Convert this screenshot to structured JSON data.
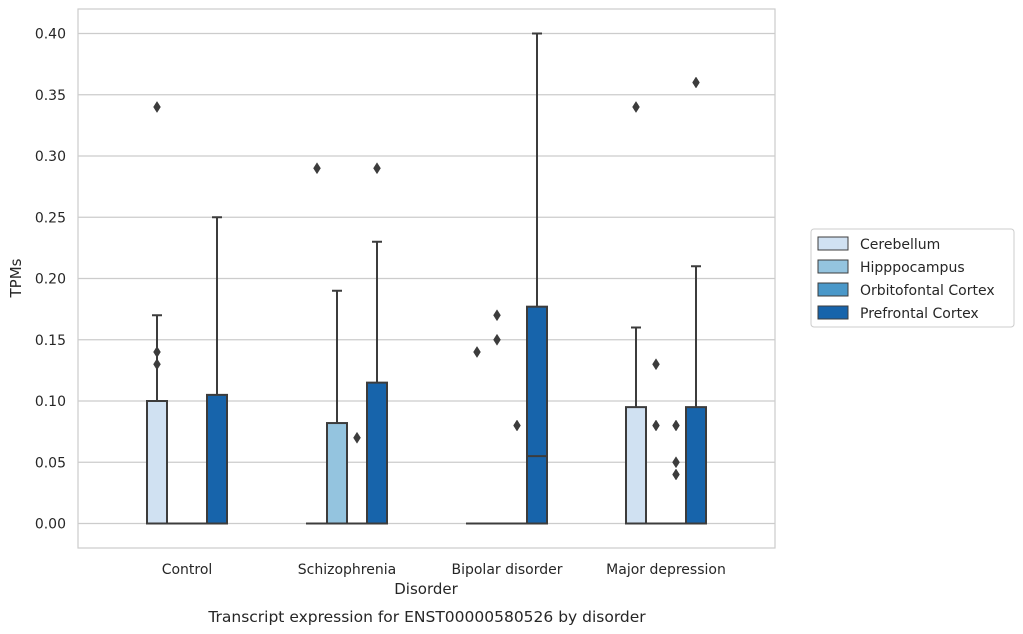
{
  "chart_data": {
    "type": "box",
    "title": "",
    "caption": "Transcript expression for ENST00000580526 by disorder",
    "xlabel": "Disorder",
    "ylabel": "TPMs",
    "ylim": [
      -0.02,
      0.42
    ],
    "yticks": [
      "0.00",
      "0.05",
      "0.10",
      "0.15",
      "0.20",
      "0.25",
      "0.30",
      "0.35",
      "0.40"
    ],
    "grid": "horizontal",
    "legend_placement": "right",
    "categories": [
      "Control",
      "Schizophrenia",
      "Bipolar disorder",
      "Major depression"
    ],
    "series": [
      {
        "name": "Cerebellum",
        "color": "#d0e1f2",
        "boxes": [
          {
            "category": "Control",
            "min": 0.0,
            "q1": 0.0,
            "median": 0.0,
            "q3": 0.1,
            "max": 0.17,
            "outliers": [
              0.13,
              0.14,
              0.34
            ]
          },
          {
            "category": "Schizophrenia",
            "min": 0.0,
            "q1": 0.0,
            "median": 0.0,
            "q3": 0.0,
            "max": 0.0,
            "outliers": [
              0.29
            ]
          },
          {
            "category": "Bipolar disorder",
            "min": 0.0,
            "q1": 0.0,
            "median": 0.0,
            "q3": 0.0,
            "max": 0.0,
            "outliers": [
              0.14
            ]
          },
          {
            "category": "Major depression",
            "min": 0.0,
            "q1": 0.0,
            "median": 0.0,
            "q3": 0.095,
            "max": 0.16,
            "outliers": [
              0.34
            ]
          }
        ]
      },
      {
        "name": "Hipppocampus",
        "color": "#94c4df",
        "boxes": [
          {
            "category": "Control",
            "min": 0.0,
            "q1": 0.0,
            "median": 0.0,
            "q3": 0.0,
            "max": 0.0,
            "outliers": []
          },
          {
            "category": "Schizophrenia",
            "min": 0.0,
            "q1": 0.0,
            "median": 0.0,
            "q3": 0.082,
            "max": 0.19,
            "outliers": []
          },
          {
            "category": "Bipolar disorder",
            "min": 0.0,
            "q1": 0.0,
            "median": 0.0,
            "q3": 0.0,
            "max": 0.0,
            "outliers": [
              0.15,
              0.17
            ]
          },
          {
            "category": "Major depression",
            "min": 0.0,
            "q1": 0.0,
            "median": 0.0,
            "q3": 0.0,
            "max": 0.0,
            "outliers": [
              0.08,
              0.13
            ]
          }
        ]
      },
      {
        "name": "Orbitofontal Cortex",
        "color": "#4a98c9",
        "boxes": [
          {
            "category": "Control",
            "min": 0.0,
            "q1": 0.0,
            "median": 0.0,
            "q3": 0.0,
            "max": 0.0,
            "outliers": []
          },
          {
            "category": "Schizophrenia",
            "min": 0.0,
            "q1": 0.0,
            "median": 0.0,
            "q3": 0.0,
            "max": 0.0,
            "outliers": [
              0.07
            ]
          },
          {
            "category": "Bipolar disorder",
            "min": 0.0,
            "q1": 0.0,
            "median": 0.0,
            "q3": 0.0,
            "max": 0.0,
            "outliers": [
              0.08
            ]
          },
          {
            "category": "Major depression",
            "min": 0.0,
            "q1": 0.0,
            "median": 0.0,
            "q3": 0.0,
            "max": 0.0,
            "outliers": [
              0.04,
              0.05,
              0.08
            ]
          }
        ]
      },
      {
        "name": "Prefrontal Cortex",
        "color": "#1764ab",
        "boxes": [
          {
            "category": "Control",
            "min": 0.0,
            "q1": 0.0,
            "median": 0.0,
            "q3": 0.105,
            "max": 0.25,
            "outliers": []
          },
          {
            "category": "Schizophrenia",
            "min": 0.0,
            "q1": 0.0,
            "median": 0.0,
            "q3": 0.115,
            "max": 0.23,
            "outliers": [
              0.29
            ]
          },
          {
            "category": "Bipolar disorder",
            "min": 0.0,
            "q1": 0.0,
            "median": 0.055,
            "q3": 0.177,
            "max": 0.4,
            "outliers": []
          },
          {
            "category": "Major depression",
            "min": 0.0,
            "q1": 0.0,
            "median": 0.0,
            "q3": 0.095,
            "max": 0.21,
            "outliers": [
              0.36
            ]
          }
        ]
      }
    ]
  }
}
